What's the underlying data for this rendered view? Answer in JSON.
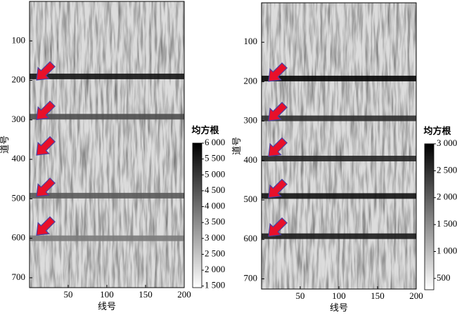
{
  "chart_data": [
    {
      "type": "heatmap",
      "xlabel": "线号",
      "ylabel": "道号",
      "xlim": [
        0,
        200
      ],
      "ylim": [
        0,
        725
      ],
      "xticks": [
        50,
        100,
        150,
        200
      ],
      "yticks": [
        100,
        200,
        300,
        400,
        500,
        600,
        700
      ],
      "colorbar": {
        "title": "均方根",
        "clim": [
          1450,
          6000
        ],
        "ticks": [
          {
            "value": 1500,
            "label": "1 500"
          },
          {
            "value": 2000,
            "label": "2 000"
          },
          {
            "value": 2500,
            "label": "2 500"
          },
          {
            "value": 3000,
            "label": "3 000"
          },
          {
            "value": 3500,
            "label": "3 500"
          },
          {
            "value": 4000,
            "label": "4 000"
          },
          {
            "value": 4500,
            "label": "4 500"
          },
          {
            "value": 5000,
            "label": "5 000"
          },
          {
            "value": 5500,
            "label": "5 500"
          },
          {
            "value": 6000,
            "label": "6 000"
          }
        ]
      },
      "bands": [
        {
          "y": 190,
          "value": 5600
        },
        {
          "y": 292,
          "value": 4600
        },
        {
          "y": 492,
          "value": 4400
        },
        {
          "y": 600,
          "value": 3800
        }
      ],
      "arrows": [
        185,
        285,
        375,
        480,
        578
      ]
    },
    {
      "type": "heatmap",
      "xlabel": "线号",
      "ylabel": "道号",
      "xlim": [
        0,
        200
      ],
      "ylim": [
        0,
        726
      ],
      "xticks": [
        50,
        100,
        150,
        200
      ],
      "yticks": [
        100,
        200,
        300,
        400,
        500,
        600,
        700
      ],
      "colorbar": {
        "title": "均方根",
        "clim": [
          290,
          3000
        ],
        "ticks": [
          {
            "value": 500,
            "label": "500"
          },
          {
            "value": 1000,
            "label": "1 000"
          },
          {
            "value": 1500,
            "label": "1 500"
          },
          {
            "value": 2000,
            "label": "2 000"
          },
          {
            "value": 2500,
            "label": "2 500"
          },
          {
            "value": 3000,
            "label": "3 000"
          }
        ]
      },
      "bands": [
        {
          "y": 192,
          "value": 2950
        },
        {
          "y": 293,
          "value": 2500
        },
        {
          "y": 395,
          "value": 2600
        },
        {
          "y": 490,
          "value": 2800
        },
        {
          "y": 592,
          "value": 2700
        }
      ],
      "arrows": [
        185,
        285,
        375,
        480,
        578
      ]
    }
  ]
}
